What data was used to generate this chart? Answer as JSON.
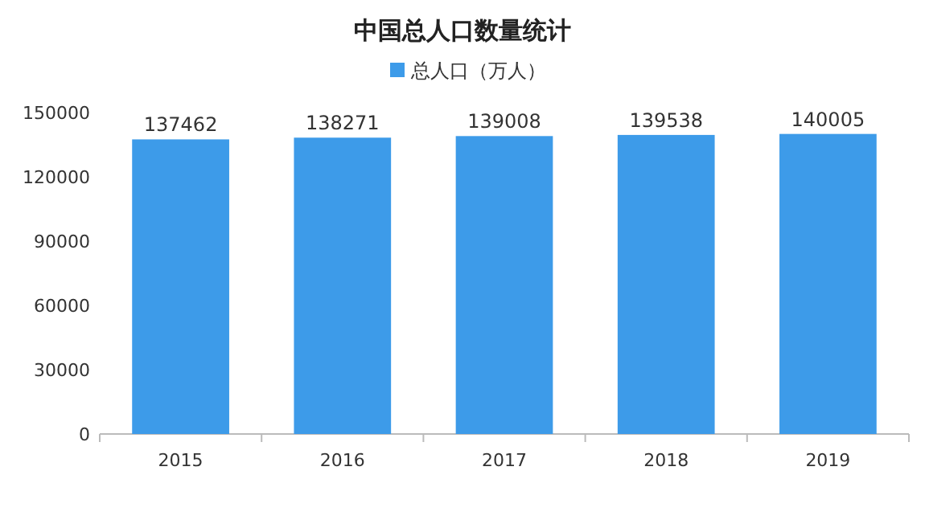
{
  "chart_data": {
    "type": "bar",
    "title": "中国总人口数量统计",
    "categories": [
      "2015",
      "2016",
      "2017",
      "2018",
      "2019"
    ],
    "series": [
      {
        "name": "总人口（万人）",
        "color": "#3d9be9",
        "values": [
          137462,
          138271,
          139008,
          139538,
          140005
        ]
      }
    ],
    "ylim": [
      0,
      150000
    ],
    "yticks": [
      0,
      30000,
      60000,
      90000,
      120000,
      150000
    ],
    "data_labels": true,
    "legend": "top"
  }
}
